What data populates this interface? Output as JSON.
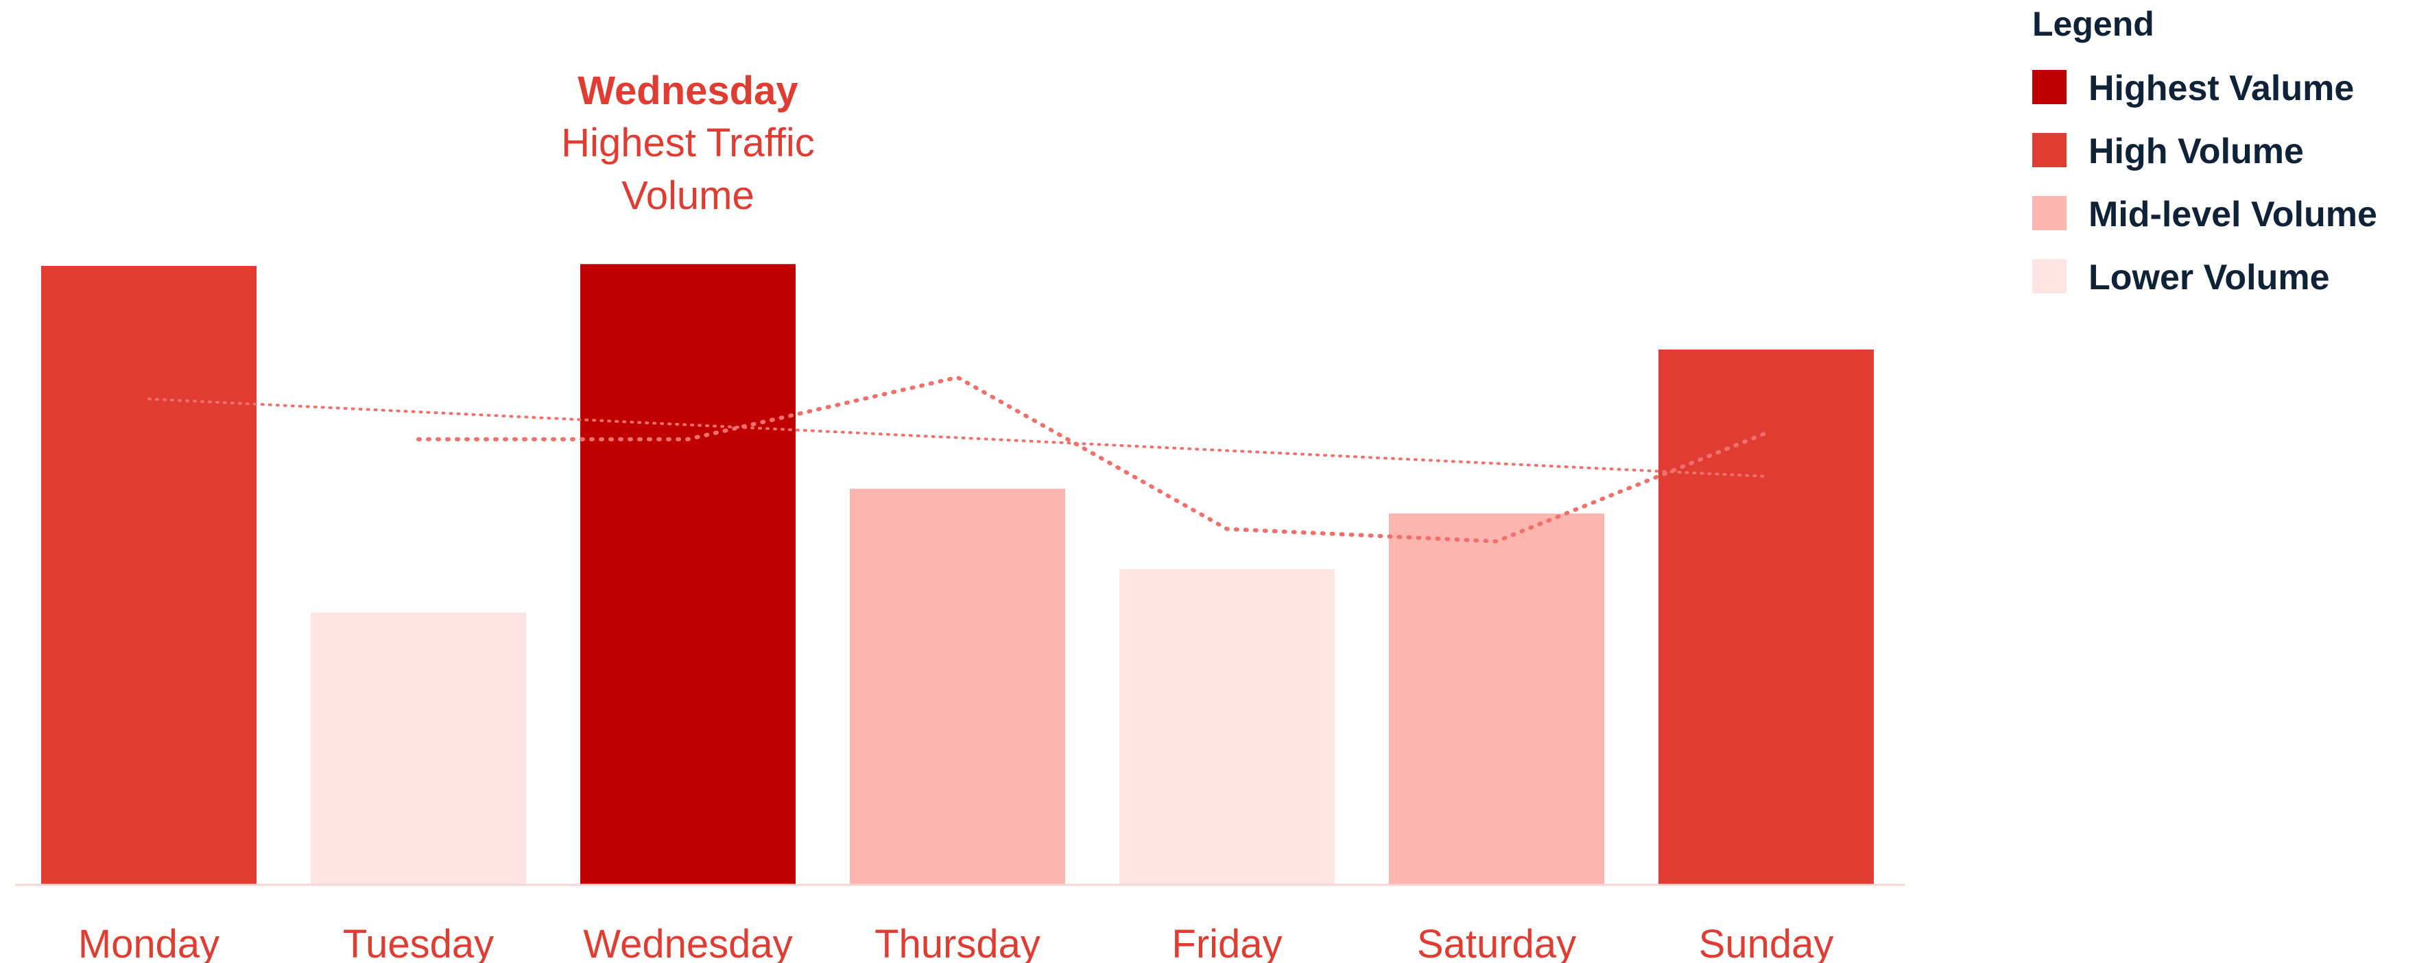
{
  "chart_data": {
    "type": "bar",
    "categories": [
      "Monday",
      "Tuesday",
      "Wednesday",
      "Thursday",
      "Friday",
      "Saturday",
      "Sunday"
    ],
    "values": [
      100,
      44,
      100.3,
      64,
      51,
      60,
      86.5
    ],
    "level_of_bar": [
      "high",
      "lower",
      "highest",
      "mid",
      "lower",
      "mid",
      "high"
    ],
    "overlay_line": {
      "style": "dotted",
      "x": [
        "Tuesday",
        "Wednesday",
        "Thursday",
        "Friday",
        "Saturday",
        "Sunday"
      ],
      "values": [
        72,
        72,
        82,
        57.5,
        55.5,
        73
      ]
    },
    "trend_line": {
      "style": "dotted",
      "x": [
        "Monday",
        "Sunday"
      ],
      "values": [
        78.5,
        66
      ]
    },
    "ylim": [
      0,
      100
    ],
    "grid": false,
    "legend_placement": "top-right",
    "annotation": {
      "category": "Wednesday",
      "title": "Wednesday",
      "lines": [
        "Highest Traffic",
        "Volume"
      ]
    }
  },
  "legend": {
    "title": "Legend",
    "items": [
      {
        "key": "highest",
        "label": "Highest Valume",
        "color": "#c00000"
      },
      {
        "key": "high",
        "label": "High Volume",
        "color": "#e03c32"
      },
      {
        "key": "mid",
        "label": "Mid-level Volume",
        "color": "#fdb5b0"
      },
      {
        "key": "lower",
        "label": "Lower Volume",
        "color": "#fee4e2"
      }
    ]
  },
  "colors": {
    "label_text": "#e03c32",
    "legend_text": "#0f2237",
    "axis_line": "#f4d6d6",
    "dotted_line": "#f2706c"
  }
}
